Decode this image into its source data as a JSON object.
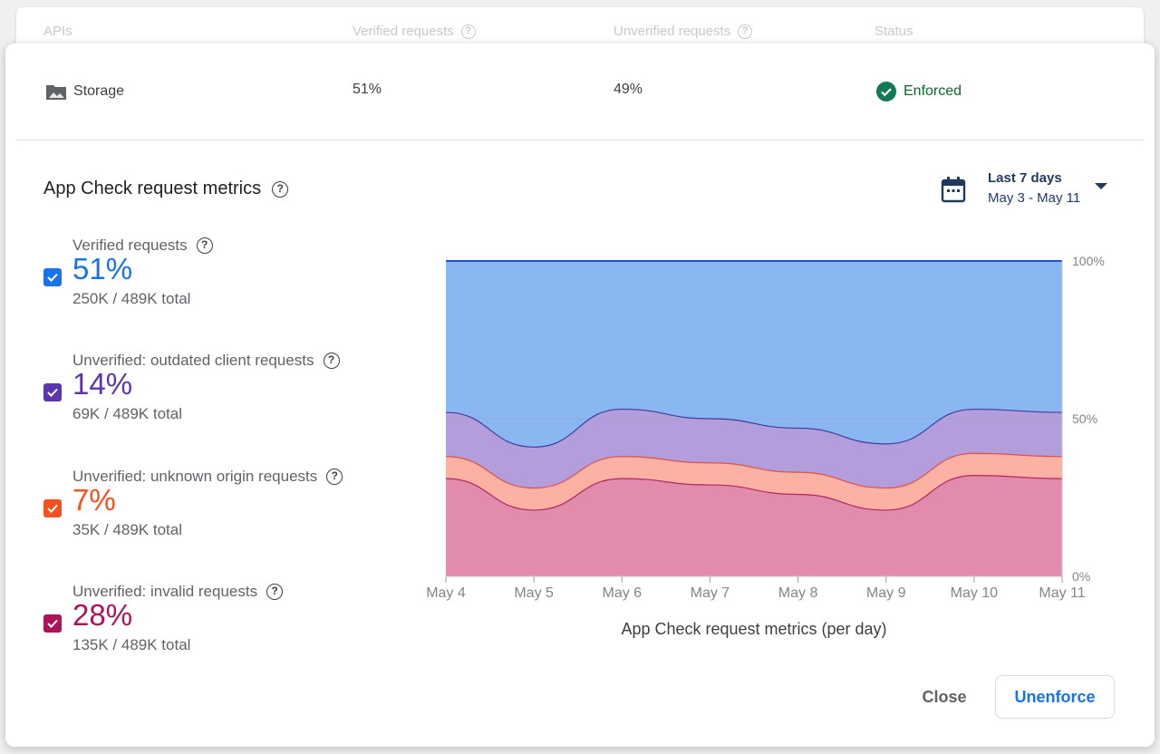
{
  "header": {
    "col_apis": "APIs",
    "col_verified": "Verified requests",
    "col_unverified": "Unverified requests",
    "col_status": "Status"
  },
  "storage": {
    "name": "Storage",
    "verified": "51%",
    "unverified": "49%",
    "status": "Enforced",
    "status_color": "#137333"
  },
  "metrics_title": "App Check request metrics",
  "date_range": {
    "label": "Last 7 days",
    "range": "May 3 - May 11"
  },
  "metrics": [
    {
      "label": "Verified requests",
      "value": "51%",
      "detail": "250K / 489K total",
      "color": "#1a73e8",
      "checked": true
    },
    {
      "label": "Unverified: outdated client requests",
      "value": "14%",
      "detail": "69K / 489K total",
      "color": "#5e35b1",
      "checked": true
    },
    {
      "label": "Unverified: unknown origin requests",
      "value": "7%",
      "detail": "35K / 489K total",
      "color": "#f4511e",
      "checked": true
    },
    {
      "label": "Unverified: invalid requests",
      "value": "28%",
      "detail": "135K / 489K total",
      "color": "#ad1457",
      "checked": true
    }
  ],
  "chart_data": {
    "type": "area",
    "stacked": true,
    "x": [
      "May 4",
      "May 5",
      "May 6",
      "May 7",
      "May 8",
      "May 9",
      "May 10",
      "May 11"
    ],
    "y_tick_labels": [
      "100%",
      "50%",
      "0%"
    ],
    "ylim": [
      0,
      100
    ],
    "xlabel": "App Check request metrics (per day)",
    "series": [
      {
        "name": "Unverified: invalid requests",
        "color": "#e38aaf",
        "line": "#b0285f",
        "values": [
          31,
          21,
          31,
          29,
          26,
          21,
          32,
          31
        ]
      },
      {
        "name": "Unverified: unknown origin requests",
        "color": "#fdb1a3",
        "line": "#d9534f",
        "values": [
          7,
          7,
          7,
          7,
          7,
          7,
          7,
          7
        ]
      },
      {
        "name": "Unverified: outdated client requests",
        "color": "#b39ddb",
        "line": "#3b3fa0",
        "values": [
          14,
          13,
          15,
          14,
          14,
          14,
          14,
          14
        ]
      },
      {
        "name": "Verified requests",
        "color": "#8ab7f2",
        "line": "#1a56c8",
        "values": [
          48,
          59,
          47,
          50,
          53,
          58,
          47,
          48
        ]
      }
    ]
  },
  "buttons": {
    "close": "Close",
    "unenforce": "Unenforce"
  }
}
